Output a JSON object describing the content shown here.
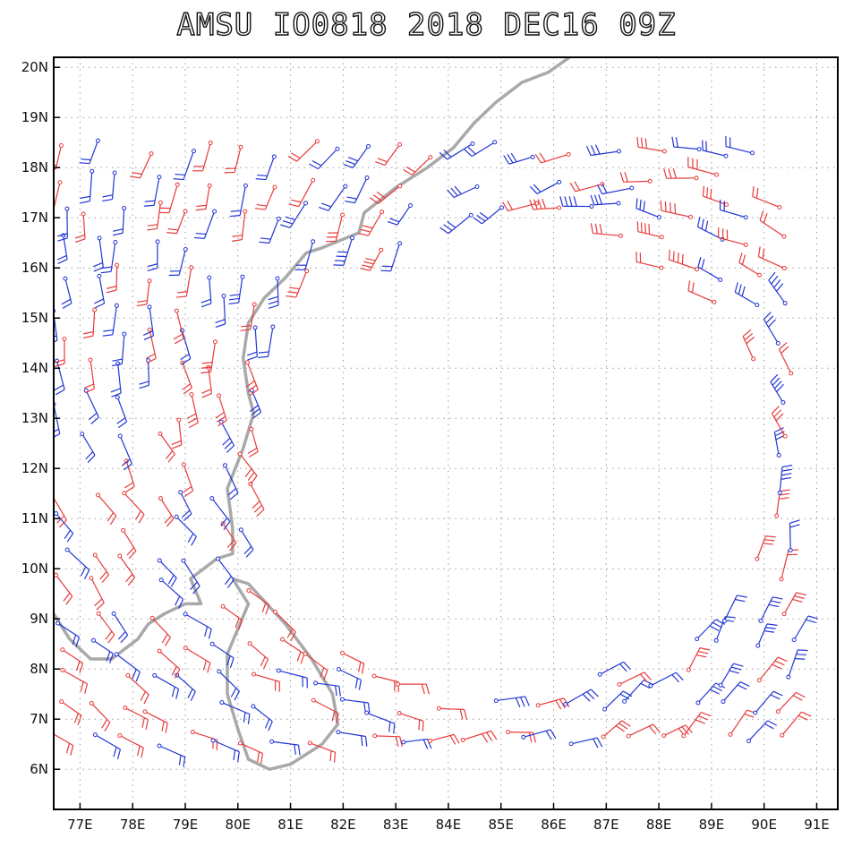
{
  "title": "AMSU IO0818 2018 DEC16 09Z",
  "map": {
    "lon_range": [
      76.5,
      91.4
    ],
    "lat_range": [
      5.2,
      20.2
    ],
    "x_ticks": [
      {
        "value": 77,
        "label": "77E"
      },
      {
        "value": 78,
        "label": "78E"
      },
      {
        "value": 79,
        "label": "79E"
      },
      {
        "value": 80,
        "label": "80E"
      },
      {
        "value": 81,
        "label": "81E"
      },
      {
        "value": 82,
        "label": "82E"
      },
      {
        "value": 83,
        "label": "83E"
      },
      {
        "value": 84,
        "label": "84E"
      },
      {
        "value": 85,
        "label": "85E"
      },
      {
        "value": 86,
        "label": "86E"
      },
      {
        "value": 87,
        "label": "87E"
      },
      {
        "value": 88,
        "label": "88E"
      },
      {
        "value": 89,
        "label": "89E"
      },
      {
        "value": 90,
        "label": "90E"
      },
      {
        "value": 91,
        "label": "91E"
      }
    ],
    "y_ticks": [
      {
        "value": 6,
        "label": "6N"
      },
      {
        "value": 7,
        "label": "7N"
      },
      {
        "value": 8,
        "label": "8N"
      },
      {
        "value": 9,
        "label": "9N"
      },
      {
        "value": 10,
        "label": "10N"
      },
      {
        "value": 11,
        "label": "11N"
      },
      {
        "value": 12,
        "label": "12N"
      },
      {
        "value": 13,
        "label": "13N"
      },
      {
        "value": 14,
        "label": "14N"
      },
      {
        "value": 15,
        "label": "15N"
      },
      {
        "value": 16,
        "label": "16N"
      },
      {
        "value": 17,
        "label": "17N"
      },
      {
        "value": 18,
        "label": "18N"
      },
      {
        "value": 19,
        "label": "19N"
      },
      {
        "value": 20,
        "label": "20N"
      }
    ],
    "colors": {
      "red": "#e83a3a",
      "blue": "#2136d4",
      "coast": "#a9a9a9",
      "grid": "#9a9a9a"
    },
    "coastline_india": [
      [
        76.5,
        9.1
      ],
      [
        76.8,
        8.6
      ],
      [
        77.2,
        8.2
      ],
      [
        77.6,
        8.2
      ],
      [
        78.1,
        8.6
      ],
      [
        78.3,
        8.9
      ],
      [
        78.6,
        9.1
      ],
      [
        79.0,
        9.3
      ],
      [
        79.3,
        9.3
      ],
      [
        79.1,
        9.8
      ],
      [
        79.6,
        10.2
      ],
      [
        79.9,
        10.3
      ],
      [
        79.9,
        10.8
      ],
      [
        79.8,
        11.6
      ],
      [
        80.1,
        12.4
      ],
      [
        80.3,
        13.1
      ],
      [
        80.2,
        13.5
      ],
      [
        80.1,
        14.2
      ],
      [
        80.2,
        14.9
      ],
      [
        80.5,
        15.4
      ],
      [
        80.9,
        15.8
      ],
      [
        81.3,
        16.3
      ],
      [
        81.6,
        16.4
      ],
      [
        82.3,
        16.7
      ],
      [
        82.4,
        17.1
      ],
      [
        83.0,
        17.6
      ],
      [
        83.6,
        18.0
      ],
      [
        84.1,
        18.4
      ],
      [
        84.5,
        18.9
      ],
      [
        84.9,
        19.3
      ],
      [
        85.4,
        19.7
      ],
      [
        85.9,
        19.9
      ],
      [
        86.3,
        20.2
      ]
    ],
    "coastline_srilanka": [
      [
        79.9,
        9.8
      ],
      [
        80.2,
        9.7
      ],
      [
        80.9,
        8.9
      ],
      [
        81.4,
        8.2
      ],
      [
        81.8,
        7.5
      ],
      [
        81.9,
        6.9
      ],
      [
        81.6,
        6.5
      ],
      [
        81.0,
        6.1
      ],
      [
        80.6,
        6.0
      ],
      [
        80.2,
        6.2
      ],
      [
        80.0,
        6.8
      ],
      [
        79.8,
        7.5
      ],
      [
        79.8,
        8.3
      ],
      [
        80.0,
        8.8
      ],
      [
        80.2,
        9.3
      ],
      [
        79.9,
        9.8
      ]
    ]
  }
}
